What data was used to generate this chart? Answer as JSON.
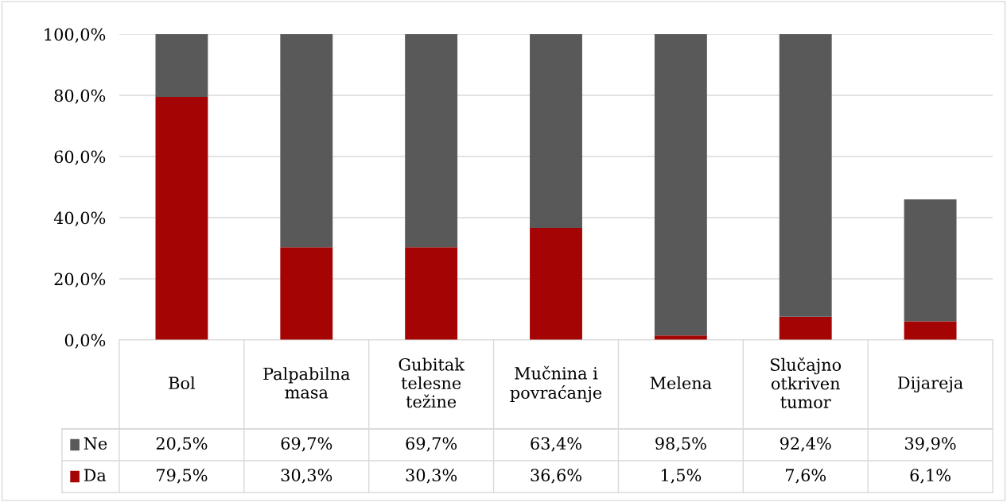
{
  "chart_data": {
    "type": "bar",
    "stacked": true,
    "categories": [
      "Bol",
      "Palpabilna\nmasa",
      "Gubitak\ntelesne\ntežine",
      "Mučnina i\npovraćanje",
      "Melena",
      "Slučajno\notkriven\ntumor",
      "Dijareja"
    ],
    "series": [
      {
        "name": "Da",
        "color": "#a50404",
        "values": [
          79.5,
          30.3,
          30.3,
          36.6,
          1.5,
          7.6,
          6.1
        ],
        "value_labels": [
          "79,5%",
          "30,3%",
          "30,3%",
          "36,6%",
          "1,5%",
          "7,6%",
          "6,1%"
        ]
      },
      {
        "name": "Ne",
        "color": "#595959",
        "values": [
          20.5,
          69.7,
          69.7,
          63.4,
          98.5,
          92.4,
          39.9
        ],
        "value_labels": [
          "20,5%",
          "69,7%",
          "69,7%",
          "63,4%",
          "98,5%",
          "92,4%",
          "39,9%"
        ]
      }
    ],
    "ylim": [
      0,
      100
    ],
    "yticks": [
      {
        "value": 0,
        "label": "0,0%"
      },
      {
        "value": 20,
        "label": "20,0%"
      },
      {
        "value": 40,
        "label": "40,0%"
      },
      {
        "value": 60,
        "label": "60,0%"
      },
      {
        "value": 80,
        "label": "80,0%"
      },
      {
        "value": 100,
        "label": "100,0%"
      }
    ],
    "grid": "y",
    "legend": "bottom left"
  }
}
